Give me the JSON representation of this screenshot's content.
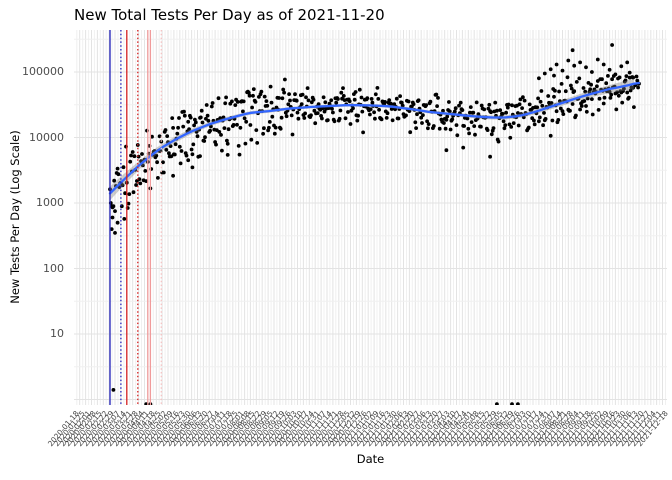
{
  "chart_data": {
    "type": "scatter",
    "title": "New Total Tests Per Day as of 2021-11-20",
    "xlabel": "Date",
    "ylabel": "New Tests Per Day (Log Scale)",
    "y_scale": "log10",
    "ylim": [
      1,
      450000
    ],
    "x_range": [
      "2020-03-01",
      "2021-11-20"
    ],
    "grid": true,
    "background": "white",
    "point_color": "#000000",
    "y_ticks": [
      {
        "label": "100000",
        "value": 100000
      },
      {
        "label": "10000",
        "value": 10000
      },
      {
        "label": "1000",
        "value": 1000
      },
      {
        "label": "100",
        "value": 100
      },
      {
        "label": "10",
        "value": 10
      }
    ],
    "x_axis": {
      "tick_start": "2020-01-18",
      "tick_interval_days": 7,
      "tick_count": 101,
      "tick_angle_deg": -50,
      "tick_format": "YYYY-MM-DD"
    },
    "smooth": {
      "name": "loess smooth",
      "color": "#3366FF",
      "width": 2.3,
      "ci_color": "rgba(127,127,127,0.38)"
    },
    "trend_points": [
      {
        "date": "2020-03-01",
        "value": 1400
      },
      {
        "date": "2020-03-13",
        "value": 2000
      },
      {
        "date": "2020-03-25",
        "value": 2800
      },
      {
        "date": "2020-04-06",
        "value": 3900
      },
      {
        "date": "2020-04-18",
        "value": 5200
      },
      {
        "date": "2020-04-29",
        "value": 6700
      },
      {
        "date": "2020-05-17",
        "value": 9200
      },
      {
        "date": "2020-06-04",
        "value": 12100
      },
      {
        "date": "2020-06-28",
        "value": 16100
      },
      {
        "date": "2020-07-22",
        "value": 19900
      },
      {
        "date": "2020-08-14",
        "value": 23700
      },
      {
        "date": "2020-09-07",
        "value": 25400
      },
      {
        "date": "2020-10-01",
        "value": 27700
      },
      {
        "date": "2020-10-25",
        "value": 29200
      },
      {
        "date": "2020-11-17",
        "value": 30300
      },
      {
        "date": "2020-12-11",
        "value": 31300
      },
      {
        "date": "2021-01-04",
        "value": 30900
      },
      {
        "date": "2021-01-28",
        "value": 29900
      },
      {
        "date": "2021-02-21",
        "value": 27200
      },
      {
        "date": "2021-03-16",
        "value": 24500
      },
      {
        "date": "2021-04-09",
        "value": 22900
      },
      {
        "date": "2021-05-03",
        "value": 21300
      },
      {
        "date": "2021-05-27",
        "value": 20200
      },
      {
        "date": "2021-06-13",
        "value": 20200
      },
      {
        "date": "2021-07-01",
        "value": 21300
      },
      {
        "date": "2021-07-19",
        "value": 24500
      },
      {
        "date": "2021-08-06",
        "value": 29200
      },
      {
        "date": "2021-08-24",
        "value": 34800
      },
      {
        "date": "2021-09-11",
        "value": 41500
      },
      {
        "date": "2021-09-28",
        "value": 47800
      },
      {
        "date": "2021-10-16",
        "value": 55000
      },
      {
        "date": "2021-11-03",
        "value": 61100
      },
      {
        "date": "2021-11-17",
        "value": 67900
      }
    ],
    "ci_halfwidth_decades": [
      [
        0,
        0.105
      ],
      [
        40,
        0.06
      ],
      [
        120,
        0.032
      ],
      [
        250,
        0.02
      ],
      [
        400,
        0.024
      ],
      [
        500,
        0.035
      ],
      [
        570,
        0.05
      ],
      [
        629,
        0.08
      ]
    ],
    "scatter_model": {
      "seed": 1337,
      "n_days": 630,
      "point_radius": 1.9,
      "eras": [
        {
          "from_day": 0,
          "sd": 0.27,
          "weekday": 0.04,
          "mon": -0.05,
          "sat": -0.08,
          "sun": -0.12
        },
        {
          "from_day": 45,
          "sd": 0.17,
          "weekday": 0.1,
          "mon": -0.12,
          "sat": -0.18,
          "sun": -0.3
        },
        {
          "from_day": 90,
          "sd": 0.12,
          "weekday": 0.15,
          "mon": -0.1,
          "sat": -0.18,
          "sun": -0.32
        },
        {
          "from_day": 210,
          "sd": 0.09,
          "weekday": 0.07,
          "mon": -0.07,
          "sat": -0.13,
          "sun": -0.22
        },
        {
          "from_day": 480,
          "sd": 0.12,
          "weekday": 0.08,
          "mon": -0.05,
          "sat": -0.12,
          "sun": -0.18
        }
      ]
    },
    "outlier_points": [
      {
        "date": "2020-03-03",
        "value": 400
      },
      {
        "date": "2020-03-04",
        "value": 600
      },
      {
        "date": "2020-03-05",
        "value": 1.4
      },
      {
        "date": "2020-03-07",
        "value": 350
      },
      {
        "date": "2020-03-10",
        "value": 500
      },
      {
        "date": "2020-04-13",
        "value": 0.85
      },
      {
        "date": "2020-04-18",
        "value": 0.85
      },
      {
        "date": "2020-05-15",
        "value": 2600
      },
      {
        "date": "2020-06-02",
        "value": 4500
      },
      {
        "date": "2020-06-07",
        "value": 3500
      },
      {
        "date": "2020-06-16",
        "value": 5200
      },
      {
        "date": "2020-07-19",
        "value": 8000
      },
      {
        "date": "2021-04-05",
        "value": 6400
      },
      {
        "date": "2021-04-25",
        "value": 7000
      },
      {
        "date": "2021-05-27",
        "value": 5100
      },
      {
        "date": "2021-06-04",
        "value": 0.85
      },
      {
        "date": "2021-06-22",
        "value": 0.85
      },
      {
        "date": "2021-06-29",
        "value": 0.85
      },
      {
        "date": "2021-07-24",
        "value": 80000
      },
      {
        "date": "2021-07-31",
        "value": 95000
      },
      {
        "date": "2021-08-07",
        "value": 110000
      },
      {
        "date": "2021-08-11",
        "value": 88000
      },
      {
        "date": "2021-08-14",
        "value": 130000
      },
      {
        "date": "2021-08-21",
        "value": 105000
      },
      {
        "date": "2021-08-28",
        "value": 150000
      },
      {
        "date": "2021-09-02",
        "value": 215000
      },
      {
        "date": "2021-09-04",
        "value": 125000
      },
      {
        "date": "2021-09-11",
        "value": 140000
      },
      {
        "date": "2021-09-18",
        "value": 118000
      },
      {
        "date": "2021-09-25",
        "value": 100000
      },
      {
        "date": "2021-10-02",
        "value": 155000
      },
      {
        "date": "2021-10-09",
        "value": 130000
      },
      {
        "date": "2021-10-16",
        "value": 108000
      },
      {
        "date": "2021-10-19",
        "value": 258000
      },
      {
        "date": "2021-10-23",
        "value": 92000
      },
      {
        "date": "2021-10-30",
        "value": 122000
      },
      {
        "date": "2021-11-06",
        "value": 140000
      },
      {
        "date": "2021-11-09",
        "value": 98000
      },
      {
        "date": "2021-11-13",
        "value": 82000
      }
    ],
    "vlines": [
      {
        "date": "2020-03-01",
        "color": "#2121B8",
        "style": "solid"
      },
      {
        "date": "2020-03-14",
        "color": "#2121B8",
        "style": "dotted"
      },
      {
        "date": "2020-03-21",
        "color": "#D62020",
        "style": "solid"
      },
      {
        "date": "2020-04-03",
        "color": "#D62020",
        "style": "dotted"
      },
      {
        "date": "2020-04-15",
        "color": "#F09B9B",
        "style": "solid"
      },
      {
        "date": "2020-04-18",
        "color": "#F09B9B",
        "style": "solid"
      },
      {
        "date": "2020-05-01",
        "color": "#F6C2C2",
        "style": "dotted"
      }
    ],
    "grid_major_color": "#E3E3E3",
    "grid_minor_color": "#F0F0F0"
  }
}
